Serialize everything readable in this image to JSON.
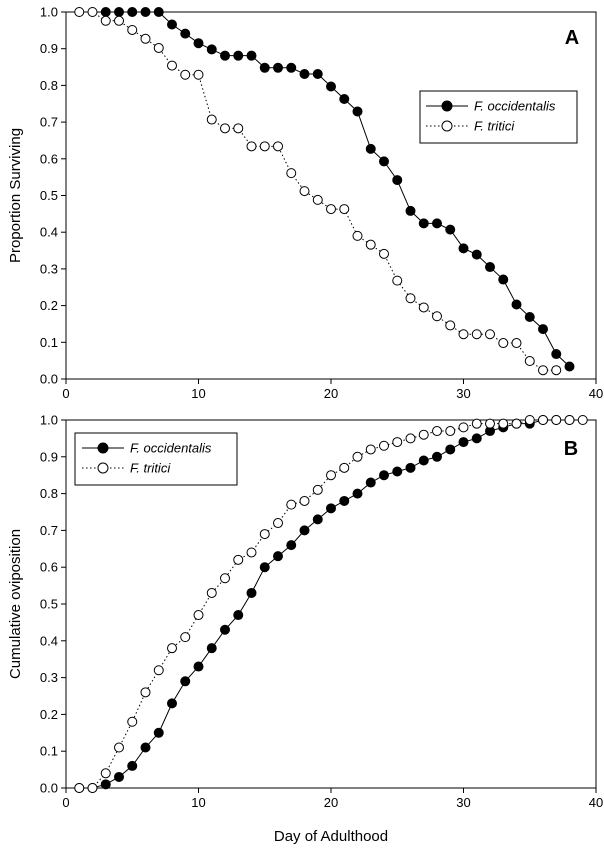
{
  "figure": {
    "xlabel": "Day of Adulthood"
  },
  "chart_data": [
    {
      "type": "line",
      "panel_label": "A",
      "xlabel": "Day of Adulthood",
      "ylabel": "Proportion Surviving",
      "xlim": [
        0,
        40
      ],
      "ylim": [
        0,
        1.0
      ],
      "xticks": [
        0,
        10,
        20,
        30,
        40
      ],
      "yticks": [
        0.0,
        0.1,
        0.2,
        0.3,
        0.4,
        0.5,
        0.6,
        0.7,
        0.8,
        0.9,
        1.0
      ],
      "xtick_labels": [
        "0",
        "10",
        "20",
        "30",
        "40"
      ],
      "ytick_labels": [
        "0.0",
        "0.1",
        "0.2",
        "0.3",
        "0.4",
        "0.5",
        "0.6",
        "0.7",
        "0.8",
        "0.9",
        "1.0"
      ],
      "grid": false,
      "legend_position": "top-right",
      "series": [
        {
          "name": "F. occidentalis",
          "marker": "filled-circle",
          "line": "solid",
          "x": [
            3,
            4,
            5,
            6,
            7,
            8,
            9,
            10,
            11,
            12,
            13,
            14,
            15,
            16,
            17,
            18,
            19,
            20,
            21,
            22,
            23,
            24,
            25,
            26,
            27,
            28,
            29,
            30,
            31,
            32,
            33,
            34,
            35,
            36,
            37,
            38
          ],
          "y": [
            1.0,
            1.0,
            1.0,
            1.0,
            1.0,
            0.966,
            0.941,
            0.915,
            0.898,
            0.881,
            0.881,
            0.881,
            0.848,
            0.848,
            0.848,
            0.831,
            0.831,
            0.797,
            0.763,
            0.729,
            0.627,
            0.593,
            0.542,
            0.458,
            0.424,
            0.424,
            0.407,
            0.356,
            0.339,
            0.305,
            0.271,
            0.203,
            0.169,
            0.136,
            0.068,
            0.034
          ]
        },
        {
          "name": "F. tritici",
          "marker": "open-circle",
          "line": "dotted",
          "x": [
            1,
            2,
            3,
            4,
            5,
            6,
            7,
            8,
            9,
            10,
            11,
            12,
            13,
            14,
            15,
            16,
            17,
            18,
            19,
            20,
            21,
            22,
            23,
            24,
            25,
            26,
            27,
            28,
            29,
            30,
            31,
            32,
            33,
            34,
            35,
            36,
            37
          ],
          "y": [
            1.0,
            1.0,
            0.976,
            0.976,
            0.951,
            0.927,
            0.902,
            0.854,
            0.829,
            0.829,
            0.707,
            0.683,
            0.683,
            0.634,
            0.634,
            0.634,
            0.561,
            0.512,
            0.488,
            0.463,
            0.463,
            0.39,
            0.366,
            0.341,
            0.268,
            0.22,
            0.195,
            0.171,
            0.146,
            0.122,
            0.122,
            0.122,
            0.098,
            0.098,
            0.049,
            0.024,
            0.024
          ]
        }
      ]
    },
    {
      "type": "line",
      "panel_label": "B",
      "xlabel": "Day of Adulthood",
      "ylabel": "Cumulative oviposition",
      "xlim": [
        0,
        40
      ],
      "ylim": [
        0,
        1.0
      ],
      "xticks": [
        0,
        10,
        20,
        30,
        40
      ],
      "yticks": [
        0.0,
        0.1,
        0.2,
        0.3,
        0.4,
        0.5,
        0.6,
        0.7,
        0.8,
        0.9,
        1.0
      ],
      "xtick_labels": [
        "0",
        "10",
        "20",
        "30",
        "40"
      ],
      "ytick_labels": [
        "0.0",
        "0.1",
        "0.2",
        "0.3",
        "0.4",
        "0.5",
        "0.6",
        "0.7",
        "0.8",
        "0.9",
        "1.0"
      ],
      "grid": false,
      "legend_position": "top-left",
      "series": [
        {
          "name": "F. occidentalis",
          "marker": "filled-circle",
          "line": "solid",
          "x": [
            1,
            2,
            3,
            4,
            5,
            6,
            7,
            8,
            9,
            10,
            11,
            12,
            13,
            14,
            15,
            16,
            17,
            18,
            19,
            20,
            21,
            22,
            23,
            24,
            25,
            26,
            27,
            28,
            29,
            30,
            31,
            32,
            33,
            34,
            35,
            36,
            37,
            38
          ],
          "y": [
            0.0,
            0.0,
            0.01,
            0.03,
            0.06,
            0.11,
            0.15,
            0.23,
            0.29,
            0.33,
            0.38,
            0.43,
            0.47,
            0.53,
            0.6,
            0.63,
            0.66,
            0.7,
            0.73,
            0.76,
            0.78,
            0.8,
            0.83,
            0.85,
            0.86,
            0.87,
            0.89,
            0.9,
            0.92,
            0.94,
            0.95,
            0.97,
            0.98,
            0.99,
            0.99,
            1.0,
            1.0,
            1.0
          ]
        },
        {
          "name": "F. tritici",
          "marker": "open-circle",
          "line": "dotted",
          "x": [
            1,
            2,
            3,
            4,
            5,
            6,
            7,
            8,
            9,
            10,
            11,
            12,
            13,
            14,
            15,
            16,
            17,
            18,
            19,
            20,
            21,
            22,
            23,
            24,
            25,
            26,
            27,
            28,
            29,
            30,
            31,
            32,
            33,
            34,
            35,
            36,
            37,
            38,
            39
          ],
          "y": [
            0.0,
            0.0,
            0.04,
            0.11,
            0.18,
            0.26,
            0.32,
            0.38,
            0.41,
            0.47,
            0.53,
            0.57,
            0.62,
            0.64,
            0.69,
            0.72,
            0.77,
            0.78,
            0.81,
            0.85,
            0.87,
            0.9,
            0.92,
            0.93,
            0.94,
            0.95,
            0.96,
            0.97,
            0.97,
            0.98,
            0.99,
            0.99,
            0.99,
            0.99,
            1.0,
            1.0,
            1.0,
            1.0,
            1.0
          ]
        }
      ]
    }
  ]
}
